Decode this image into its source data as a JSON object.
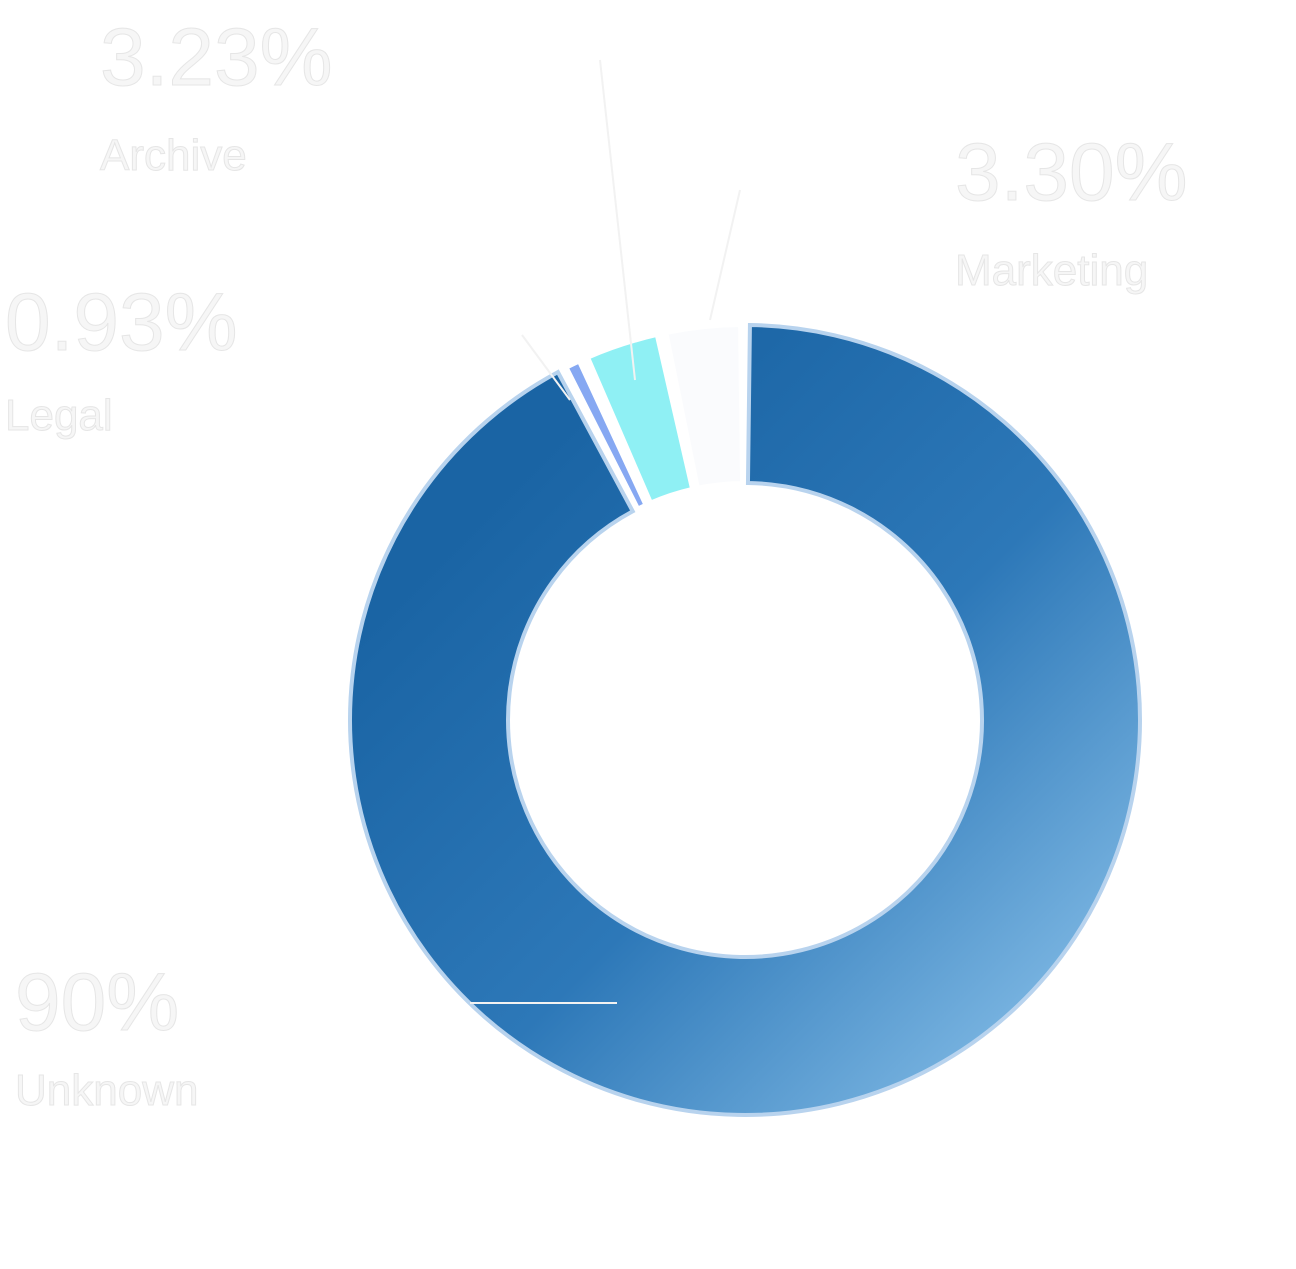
{
  "chart_data": {
    "type": "pie",
    "categories": [
      "Unknown",
      "Legal",
      "Archive",
      "Marketing"
    ],
    "values": [
      90,
      0.93,
      3.23,
      3.3
    ],
    "value_labels": [
      "90%",
      "0.93%",
      "3.23%",
      "3.30%"
    ],
    "colors": [
      "#2a6fae",
      "#86a8f2",
      "#8ff0f4",
      "#fafbfd"
    ]
  }
}
